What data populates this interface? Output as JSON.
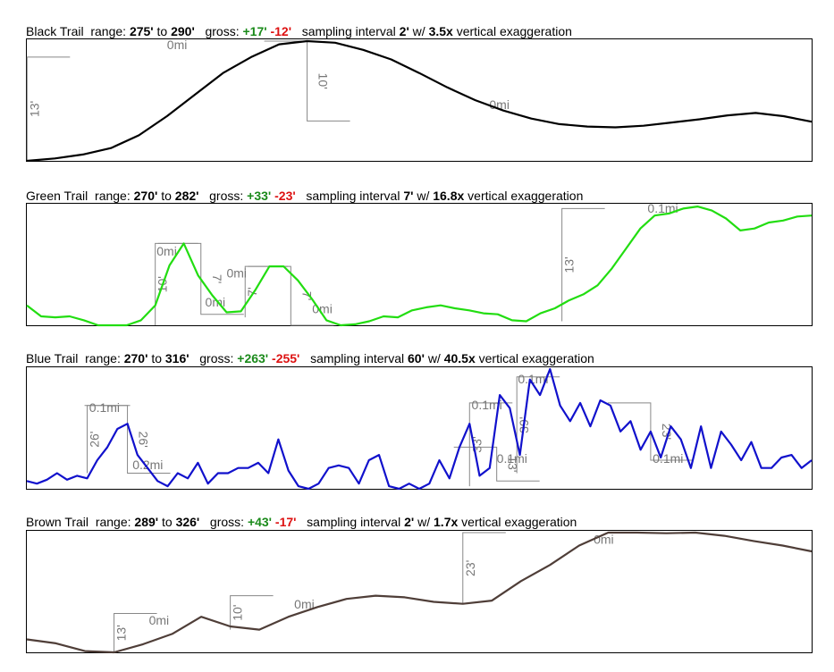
{
  "chart_data": [
    {
      "type": "line",
      "title": {
        "name": "Black Trail",
        "range_label": "range:",
        "min": "275'",
        "to": "to",
        "max": "290'",
        "gross_label": "gross:",
        "gain": "+17'",
        "loss": "-12'",
        "interval_label": "sampling interval",
        "interval": "2'",
        "w_label": "w/",
        "exaggeration": "3.5x",
        "exag_label": "vertical exaggeration"
      },
      "color": "#000000",
      "ylim": [
        275,
        290
      ],
      "y": [
        275,
        275.3,
        275.8,
        276.6,
        278.2,
        280.6,
        283.3,
        286,
        288,
        289.6,
        290,
        289.8,
        288.9,
        287.7,
        286,
        284.2,
        282.6,
        281.3,
        280.3,
        279.6,
        279.3,
        279.2,
        279.4,
        279.8,
        280.2,
        280.7,
        281,
        280.6,
        279.9
      ],
      "annotations": [
        {
          "x": 0.01,
          "y0": 275,
          "y1": 288,
          "label": "13'"
        },
        {
          "x": 10,
          "y0": 290,
          "y1": 280,
          "label": "10'"
        }
      ],
      "distances": [
        {
          "x": 5,
          "y": 289,
          "label": "0mi"
        },
        {
          "x": 16.5,
          "y": 281.5,
          "label": "0mi"
        }
      ]
    },
    {
      "type": "line",
      "title": {
        "name": "Green Trail",
        "range_label": "range:",
        "min": "270'",
        "to": "to",
        "max": "282'",
        "gross_label": "gross:",
        "gain": "+33'",
        "loss": "-23'",
        "interval_label": "sampling interval",
        "interval": "7'",
        "w_label": "w/",
        "exaggeration": "16.8x",
        "exag_label": "vertical exaggeration"
      },
      "color": "#22dd11",
      "ylim": [
        270,
        282
      ],
      "y": [
        272,
        270.9,
        270.8,
        270.9,
        270.5,
        270,
        270,
        270,
        270.5,
        272,
        276,
        278.2,
        275,
        273,
        271.3,
        271.4,
        273.5,
        275.9,
        275.9,
        274.5,
        272.6,
        270.5,
        270,
        270.1,
        270.4,
        270.9,
        270.8,
        271.5,
        271.8,
        272,
        271.7,
        271.5,
        271.2,
        271.1,
        270.5,
        270.4,
        271.2,
        271.7,
        272.5,
        273.1,
        274,
        275.7,
        277.7,
        279.7,
        281,
        281.2,
        281.7,
        281.9,
        281.5,
        280.7,
        279.5,
        279.7,
        280.3,
        280.5,
        280.9,
        281
      ],
      "annotations": [
        {
          "x": 9.0,
          "y0": 270,
          "y1": 278.2,
          "label": "10'"
        },
        {
          "x": 12.2,
          "y0": 278.2,
          "y1": 271.1,
          "label": "7'"
        },
        {
          "x": 15.3,
          "y0": 270.8,
          "y1": 275.9,
          "label": "7'"
        },
        {
          "x": 18.5,
          "y0": 275.9,
          "y1": 270,
          "label": "7'"
        },
        {
          "x": 37.5,
          "y0": 270.4,
          "y1": 281.7,
          "label": "13'"
        }
      ],
      "distances": [
        {
          "x": 9.1,
          "y": 277,
          "label": "0mi"
        },
        {
          "x": 14,
          "y": 274.8,
          "label": "0mi"
        },
        {
          "x": 12.5,
          "y": 271.9,
          "label": "0mi"
        },
        {
          "x": 20,
          "y": 271.2,
          "label": "0mi"
        },
        {
          "x": 43.5,
          "y": 281.3,
          "label": "0.1mi"
        }
      ]
    },
    {
      "type": "line",
      "title": {
        "name": "Blue Trail",
        "range_label": "range:",
        "min": "270'",
        "to": "to",
        "max": "316'",
        "gross_label": "gross:",
        "gain": "+263'",
        "loss": "-255'",
        "interval_label": "sampling interval",
        "interval": "60'",
        "w_label": "w/",
        "exaggeration": "40.5x",
        "exag_label": "vertical exaggeration"
      },
      "color": "#1111cc",
      "ylim": [
        270,
        316
      ],
      "y": [
        273,
        272,
        273.5,
        276,
        273.5,
        275,
        274,
        281,
        286,
        293,
        295,
        283,
        278,
        273,
        271,
        276,
        274,
        280,
        272,
        276,
        276,
        278,
        278,
        280,
        276,
        289,
        277,
        271,
        270,
        272,
        278,
        279,
        278,
        272,
        281,
        283,
        271,
        270,
        272,
        270,
        272,
        281,
        274,
        286,
        295,
        275,
        278,
        306,
        301,
        283,
        312,
        306,
        316,
        302,
        296,
        303,
        294,
        304,
        302,
        292,
        296,
        285,
        292,
        282,
        294,
        289,
        278,
        294,
        278,
        292,
        287,
        281,
        288,
        278,
        278,
        282,
        283,
        278,
        281
      ],
      "annotations": [
        {
          "x": 6,
          "y0": 276,
          "y1": 302,
          "label": "26'"
        },
        {
          "x": 10,
          "y0": 302,
          "y1": 276,
          "label": "26'"
        },
        {
          "x": 44,
          "y0": 271,
          "y1": 303,
          "label": "33'"
        },
        {
          "x": 46.7,
          "y0": 286,
          "y1": 273,
          "label": "13'"
        },
        {
          "x": 48.7,
          "y0": 276,
          "y1": 313,
          "label": "39'"
        },
        {
          "x": 62,
          "y0": 303,
          "y1": 281,
          "label": "23'"
        }
      ],
      "distances": [
        {
          "x": 6.2,
          "y": 299.5,
          "label": "0.1mi"
        },
        {
          "x": 10.5,
          "y": 277.5,
          "label": "0.2mi"
        },
        {
          "x": 44.2,
          "y": 300.5,
          "label": "0.1mi"
        },
        {
          "x": 46.7,
          "y": 280,
          "label": "0.1mi"
        },
        {
          "x": 48.8,
          "y": 310.5,
          "label": "0.1mi"
        },
        {
          "x": 62.2,
          "y": 280,
          "label": "0.1mi"
        }
      ]
    },
    {
      "type": "line",
      "title": {
        "name": "Brown Trail",
        "range_label": "range:",
        "min": "289'",
        "to": "to",
        "max": "326'",
        "gross_label": "gross:",
        "gain": "+43'",
        "loss": "-17'",
        "interval_label": "sampling interval",
        "interval": "2'",
        "w_label": "w/",
        "exaggeration": "1.7x",
        "exag_label": "vertical exaggeration"
      },
      "color": "#4f3e38",
      "ylim": [
        289,
        326
      ],
      "y": [
        293,
        291.8,
        289.4,
        289,
        291.5,
        294.7,
        300,
        297,
        296,
        300,
        303,
        305.5,
        306.5,
        306,
        304.6,
        304,
        305,
        311,
        316,
        322,
        326,
        326,
        325.8,
        326,
        325,
        323.4,
        322,
        320.2
      ],
      "annotations": [
        {
          "x": 3,
          "y0": 289,
          "y1": 301,
          "label": "13'"
        },
        {
          "x": 7,
          "y0": 296,
          "y1": 306.5,
          "label": "10'"
        },
        {
          "x": 15,
          "y0": 304,
          "y1": 326,
          "label": "23'"
        }
      ],
      "distances": [
        {
          "x": 4.2,
          "y": 297.5,
          "label": "0mi"
        },
        {
          "x": 9.2,
          "y": 302.5,
          "label": "0mi"
        },
        {
          "x": 19.5,
          "y": 322.5,
          "label": "0mi"
        }
      ]
    }
  ]
}
